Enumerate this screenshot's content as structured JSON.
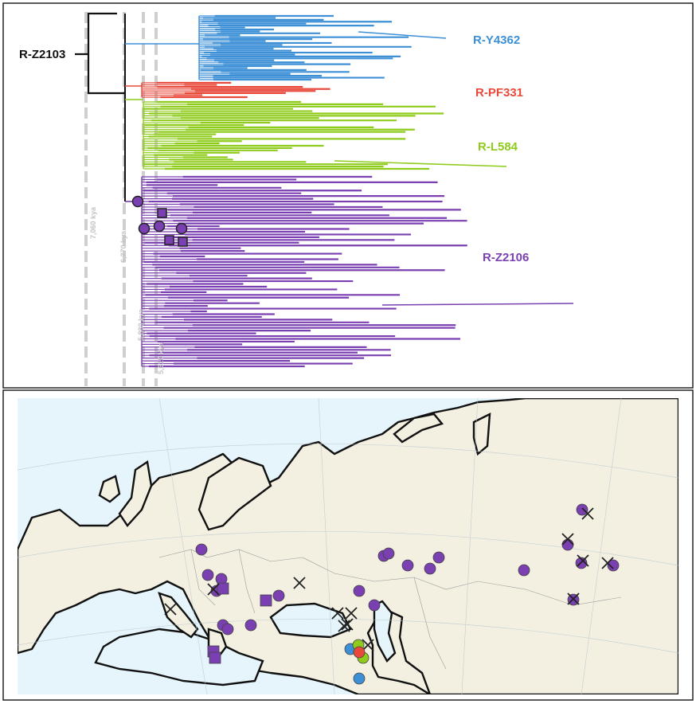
{
  "colors": {
    "Y4362": "#3d8fd6",
    "PF331": "#e8493a",
    "L584": "#8ecb1b",
    "Z2106": "#7a3fb0",
    "root": "#111111",
    "timeline": "#cfcfcf",
    "sea": "#e6f5fb",
    "land": "#f3f0e2"
  },
  "tree": {
    "root_label": "R-Z2103",
    "clades": [
      {
        "key": "Y4362",
        "label": "R-Y4362"
      },
      {
        "key": "PF331",
        "label": "R-PF331"
      },
      {
        "key": "L584",
        "label": "R-L584"
      },
      {
        "key": "Z2106",
        "label": "R-Z2106"
      }
    ],
    "timeline": [
      {
        "label": "7,060 kya"
      },
      {
        "label": "6,270 kya"
      },
      {
        "label": "5,880 kya"
      },
      {
        "label": "5,610 kya"
      }
    ]
  },
  "map": {
    "marker_types": [
      "circle",
      "square",
      "cross"
    ]
  }
}
